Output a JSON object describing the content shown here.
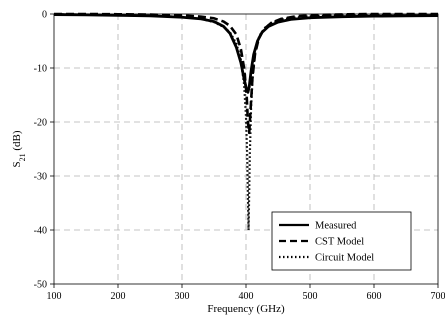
{
  "chart_data": {
    "type": "line",
    "title": "",
    "xlabel": "Frequency (GHz)",
    "ylabel_base": "S",
    "ylabel_sub": "21",
    "ylabel_unit": " (dB)",
    "xlim": [
      100,
      700
    ],
    "ylim": [
      -50,
      0
    ],
    "xticks": [
      100,
      200,
      300,
      400,
      500,
      600,
      700
    ],
    "yticks": [
      0,
      -10,
      -20,
      -30,
      -40,
      -50
    ],
    "xtick_labels": [
      "100",
      "200",
      "300",
      "400",
      "500",
      "600",
      "700"
    ],
    "ytick_labels": [
      "0",
      "-10",
      "-20",
      "-30",
      "-40",
      "-50"
    ],
    "grid": true,
    "legend_position": "bottom-right",
    "series": [
      {
        "name": "Measured",
        "style": "solid",
        "x": [
          100,
          150,
          200,
          250,
          300,
          330,
          350,
          365,
          375,
          385,
          392,
          397,
          401,
          403,
          405,
          408,
          412,
          418,
          425,
          435,
          450,
          470,
          500,
          550,
          600,
          650,
          700
        ],
        "y": [
          -0.1,
          -0.15,
          -0.25,
          -0.35,
          -0.6,
          -0.9,
          -1.4,
          -2.3,
          -3.6,
          -6.2,
          -9.0,
          -12.0,
          -14.0,
          -14.5,
          -13.5,
          -10.5,
          -7.5,
          -5.0,
          -3.4,
          -2.3,
          -1.5,
          -1.0,
          -0.7,
          -0.5,
          -0.4,
          -0.35,
          -0.3
        ]
      },
      {
        "name": "CST Model",
        "style": "dashed",
        "x": [
          100,
          150,
          200,
          250,
          300,
          330,
          350,
          365,
          375,
          385,
          392,
          397,
          401,
          403,
          405,
          407,
          410,
          414,
          420,
          428,
          440,
          455,
          480,
          520,
          560,
          600,
          650,
          700
        ],
        "y": [
          0,
          0,
          -0.05,
          -0.1,
          -0.25,
          -0.5,
          -0.8,
          -1.4,
          -2.2,
          -3.8,
          -6.5,
          -10.0,
          -15.0,
          -20.0,
          -22.0,
          -18.0,
          -12.0,
          -7.5,
          -4.5,
          -2.8,
          -1.6,
          -0.9,
          -0.4,
          -0.15,
          -0.05,
          0,
          0,
          0
        ]
      },
      {
        "name": "Circuit Model",
        "style": "dotted",
        "x": [
          100,
          150,
          200,
          250,
          300,
          330,
          350,
          365,
          375,
          385,
          392,
          397,
          400,
          402,
          403,
          404,
          405,
          406,
          408,
          411,
          415,
          421,
          430,
          442,
          460,
          490,
          530,
          580,
          640,
          700
        ],
        "y": [
          -0.05,
          -0.1,
          -0.2,
          -0.3,
          -0.55,
          -0.9,
          -1.5,
          -2.4,
          -3.4,
          -5.5,
          -8.5,
          -13.0,
          -19.0,
          -27.0,
          -34.0,
          -40.0,
          -33.0,
          -26.0,
          -17.0,
          -10.5,
          -6.5,
          -4.0,
          -2.5,
          -1.5,
          -0.9,
          -0.5,
          -0.3,
          -0.2,
          -0.1,
          -0.1
        ]
      }
    ]
  }
}
